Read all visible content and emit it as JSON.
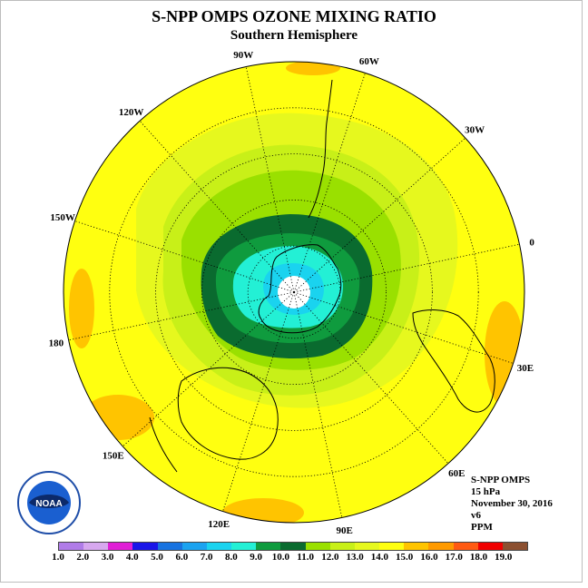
{
  "title": "S-NPP OMPS OZONE MIXING RATIO",
  "subtitle": "Southern Hemisphere",
  "meridian_labels": [
    {
      "text": "90W",
      "lon": -90
    },
    {
      "text": "60W",
      "lon": -60
    },
    {
      "text": "30W",
      "lon": -30
    },
    {
      "text": "0",
      "lon": 0
    },
    {
      "text": "30E",
      "lon": 30
    },
    {
      "text": "60E",
      "lon": 60
    },
    {
      "text": "90E",
      "lon": 90
    },
    {
      "text": "120E",
      "lon": 120
    },
    {
      "text": "150E",
      "lon": 150
    },
    {
      "text": "180",
      "lon": 180
    },
    {
      "text": "150W",
      "lon": -150
    },
    {
      "text": "120W",
      "lon": -120
    }
  ],
  "info": {
    "instrument": "S-NPP OMPS",
    "level": "15 hPa",
    "date": "November 30, 2016",
    "version": "v6",
    "units": "PPM"
  },
  "logo_text": "NOAA",
  "colorbar": {
    "colors": [
      "#b07ce8",
      "#d7a8ef",
      "#e01fd6",
      "#1a16e8",
      "#1873e0",
      "#1ba3f0",
      "#1ad3ef",
      "#23f0d5",
      "#0f9b3e",
      "#0a6b2f",
      "#9ae000",
      "#c8f018",
      "#e6f81e",
      "#ffff10",
      "#ffc400",
      "#ff9a00",
      "#ff5a12",
      "#f00000",
      "#8c5030"
    ],
    "ticks": [
      "1.0",
      "2.0",
      "3.0",
      "4.0",
      "5.0",
      "6.0",
      "7.0",
      "8.0",
      "9.0",
      "10.0",
      "11.0",
      "12.0",
      "13.0",
      "14.0",
      "15.0",
      "16.0",
      "17.0",
      "18.0",
      "19.0"
    ]
  },
  "field_colors": {
    "band_14_15": "#ffff10",
    "band_13_14": "#e6f81e",
    "band_12_13": "#c8f018",
    "band_11_12": "#9ae000",
    "band_10_11": "#0a6b2f",
    "band_9_10": "#0f9b3e",
    "band_8_9": "#23f0d5",
    "band_7_8": "#1ad3ef",
    "band_15_16": "#ffc400"
  }
}
